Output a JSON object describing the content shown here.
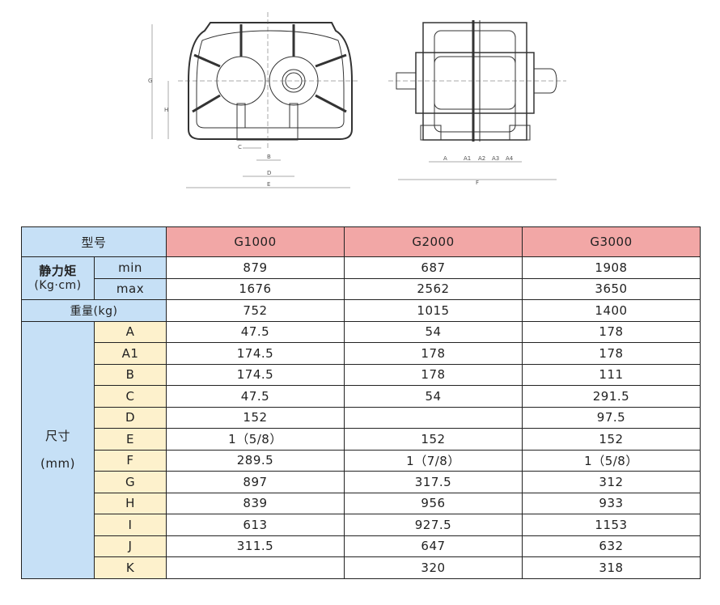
{
  "drawing": {
    "front_labels": [
      "G",
      "H",
      "C",
      "B",
      "D",
      "E"
    ],
    "side_labels": [
      "A",
      "A1",
      "A2",
      "A3",
      "A4",
      "F"
    ]
  },
  "table": {
    "header": {
      "model_label": "型号",
      "models": [
        "G1000",
        "G2000",
        "G3000"
      ]
    },
    "torque": {
      "label": "静力矩",
      "unit": "(Kg·cm)",
      "min_label": "min",
      "max_label": "max",
      "min": [
        "879",
        "687",
        "1908"
      ],
      "max": [
        "1676",
        "2562",
        "3650"
      ]
    },
    "weight": {
      "label": "重量(kg)",
      "values": [
        "752",
        "1015",
        "1400"
      ]
    },
    "dimensions": {
      "label": "尺寸",
      "unit": "(mm)",
      "rows": [
        {
          "key": "A",
          "values": [
            "47.5",
            "54",
            "178"
          ]
        },
        {
          "key": "A1",
          "values": [
            "174.5",
            "178",
            "178"
          ]
        },
        {
          "key": "B",
          "values": [
            "174.5",
            "178",
            "111"
          ]
        },
        {
          "key": "C",
          "values": [
            "47.5",
            "54",
            "291.5"
          ]
        },
        {
          "key": "D",
          "values": [
            "152",
            "",
            "97.5"
          ]
        },
        {
          "key": "E",
          "values": [
            "1（5/8）",
            "152",
            "152"
          ]
        },
        {
          "key": "F",
          "values": [
            "289.5",
            "1（7/8）",
            "1（5/8）"
          ]
        },
        {
          "key": "G",
          "values": [
            "897",
            "317.5",
            "312"
          ]
        },
        {
          "key": "H",
          "values": [
            "839",
            "956",
            "933"
          ]
        },
        {
          "key": "I",
          "values": [
            "613",
            "927.5",
            "1153"
          ]
        },
        {
          "key": "J",
          "values": [
            "311.5",
            "647",
            "632"
          ]
        },
        {
          "key": "K",
          "values": [
            "",
            "320",
            "318"
          ]
        }
      ]
    }
  },
  "colors": {
    "header_blue": "#c6e0f6",
    "model_pink": "#f2a7a6",
    "key_yellow": "#fdf1cc"
  }
}
